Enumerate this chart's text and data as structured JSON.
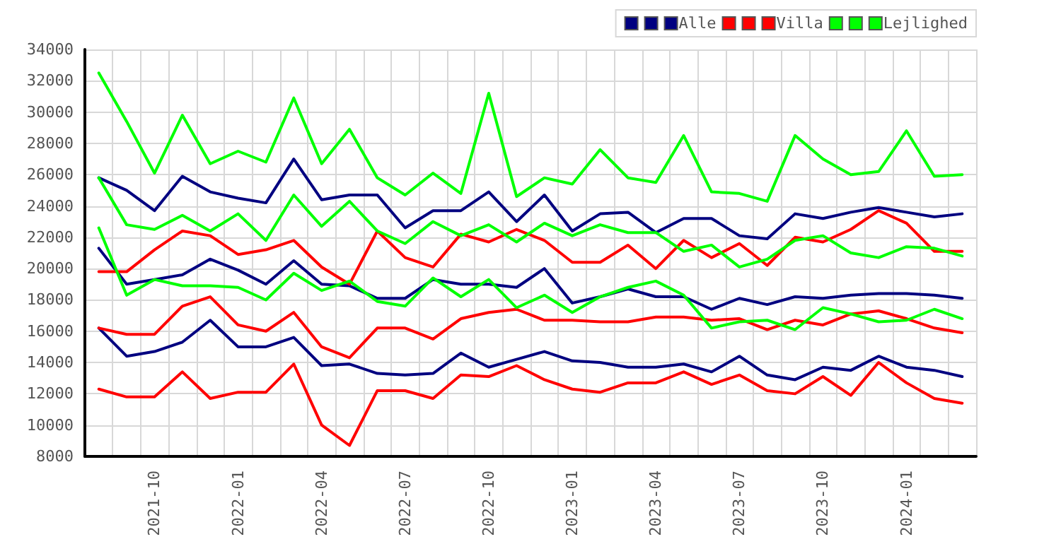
{
  "chart_data": {
    "type": "line",
    "categories": [
      null,
      null,
      "2021-10",
      null,
      null,
      "2022-01",
      null,
      null,
      "2022-04",
      null,
      null,
      "2022-07",
      null,
      null,
      "2022-10",
      null,
      null,
      "2023-01",
      null,
      null,
      "2023-04",
      null,
      null,
      "2023-07",
      null,
      null,
      "2023-10",
      null,
      null,
      "2024-01",
      null,
      null
    ],
    "series": [
      {
        "color": "#000080",
        "values": [
          25800,
          25000,
          23700,
          25900,
          24900,
          24500,
          24200,
          27000,
          24400,
          24700,
          24700,
          22600,
          23700,
          23700,
          24900,
          23000,
          24700,
          22400,
          23500,
          23600,
          22300,
          23200,
          23200,
          22100,
          21900,
          23500,
          23200,
          23600,
          23900,
          23600,
          23300,
          23500
        ]
      },
      {
        "color": "#000080",
        "values": [
          21300,
          19000,
          19300,
          19600,
          20600,
          19900,
          19000,
          20500,
          19000,
          18900,
          18100,
          18100,
          19300,
          19000,
          19000,
          18800,
          20000,
          17800,
          18200,
          18700,
          18200,
          18200,
          17400,
          18100,
          17700,
          18200,
          18100,
          18300,
          18400,
          18400,
          18300,
          18100
        ]
      },
      {
        "name": "Alle",
        "color": "#000080",
        "values": [
          16200,
          14400,
          14700,
          15300,
          16700,
          15000,
          15000,
          15600,
          13800,
          13900,
          13300,
          13200,
          13300,
          14600,
          13700,
          14200,
          14700,
          14100,
          14000,
          13700,
          13700,
          13900,
          13400,
          14400,
          13200,
          12900,
          13700,
          13500,
          14400,
          13700,
          13500,
          13100
        ]
      },
      {
        "color": "#ff0000",
        "values": [
          19800,
          19800,
          21200,
          22400,
          22100,
          20900,
          21200,
          21800,
          20100,
          19000,
          22400,
          20700,
          20100,
          22200,
          21700,
          22500,
          21800,
          20400,
          20400,
          21500,
          20000,
          21800,
          20700,
          21600,
          20200,
          22000,
          21700,
          22500,
          23700,
          22900,
          21100,
          21100
        ]
      },
      {
        "color": "#ff0000",
        "values": [
          16200,
          15800,
          15800,
          17600,
          18200,
          16400,
          16000,
          17200,
          15000,
          14300,
          16200,
          16200,
          15500,
          16800,
          17200,
          17400,
          16700,
          16700,
          16600,
          16600,
          16900,
          16900,
          16700,
          16800,
          16100,
          16700,
          16400,
          17100,
          17300,
          16800,
          16200,
          15900
        ]
      },
      {
        "name": "Villa",
        "color": "#ff0000",
        "values": [
          12300,
          11800,
          11800,
          13400,
          11700,
          12100,
          12100,
          13900,
          10000,
          8700,
          12200,
          12200,
          11700,
          13200,
          13100,
          13800,
          12900,
          12300,
          12100,
          12700,
          12700,
          13400,
          12600,
          13200,
          12200,
          12000,
          13100,
          11900,
          14000,
          12700,
          11700,
          11400
        ]
      },
      {
        "color": "#00ff00",
        "values": [
          32500,
          29400,
          26100,
          29800,
          26700,
          27500,
          26800,
          30900,
          26700,
          28900,
          25800,
          24700,
          26100,
          24800,
          31200,
          24600,
          25800,
          25400,
          27600,
          25800,
          25500,
          28500,
          24900,
          24800,
          24300,
          28500,
          27000,
          26000,
          26200,
          28800,
          25900,
          26000
        ]
      },
      {
        "color": "#00ff00",
        "values": [
          25800,
          22800,
          22500,
          23400,
          22400,
          23500,
          21800,
          24700,
          22700,
          24300,
          22400,
          21600,
          23000,
          22100,
          22800,
          21700,
          22900,
          22100,
          22800,
          22300,
          22300,
          21100,
          21500,
          20100,
          20600,
          21800,
          22100,
          21000,
          20700,
          21400,
          21300,
          20800
        ]
      },
      {
        "name": "Lejlighed",
        "color": "#00ff00",
        "values": [
          22600,
          18300,
          19300,
          18900,
          18900,
          18800,
          18000,
          19700,
          18600,
          19200,
          17900,
          17600,
          19400,
          18200,
          19300,
          17500,
          18300,
          17200,
          18200,
          18800,
          19200,
          18300,
          16200,
          16600,
          16700,
          16100,
          17500,
          17100,
          16600,
          16700,
          17400,
          16800
        ]
      }
    ],
    "ylim": [
      8000,
      34000
    ],
    "yticks": [
      8000,
      10000,
      12000,
      14000,
      16000,
      18000,
      20000,
      22000,
      24000,
      26000,
      28000,
      30000,
      32000,
      34000
    ],
    "grid": true,
    "legend": "top right",
    "marker": "none",
    "line_style": "solid"
  }
}
